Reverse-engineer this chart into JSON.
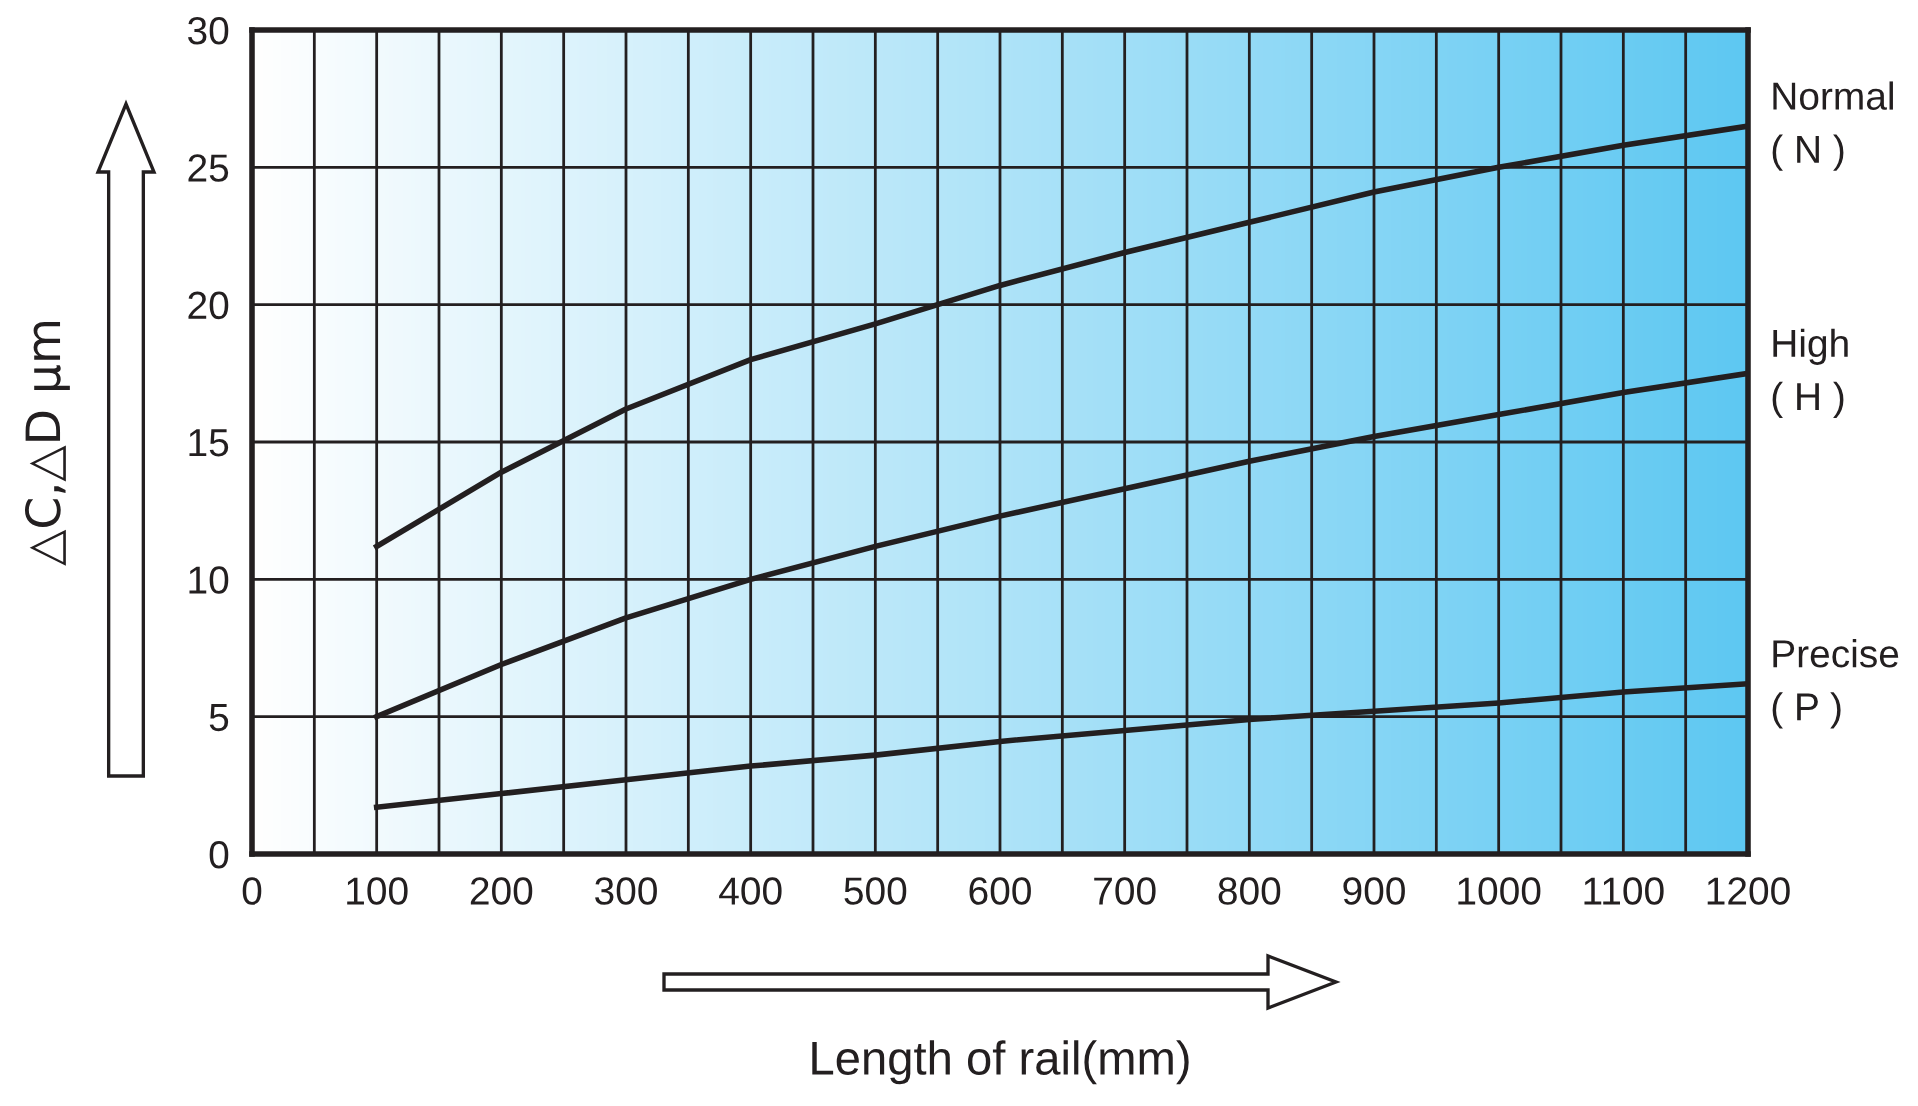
{
  "chart_data": {
    "type": "line",
    "xlabel": "Length of rail(mm)",
    "ylabel": "△C,△D μm",
    "x": [
      100,
      200,
      300,
      400,
      500,
      600,
      700,
      800,
      900,
      1000,
      1100,
      1200
    ],
    "series": [
      {
        "name": "Normal\n( N )",
        "color": "#231f20",
        "values": [
          11.2,
          13.9,
          16.2,
          18.0,
          19.3,
          20.7,
          21.9,
          23.0,
          24.1,
          25.0,
          25.8,
          26.5
        ]
      },
      {
        "name": "High\n( H )",
        "color": "#231f20",
        "values": [
          5.0,
          6.9,
          8.6,
          10.0,
          11.2,
          12.3,
          13.3,
          14.3,
          15.2,
          16.0,
          16.8,
          17.5
        ]
      },
      {
        "name": "Precise\n( P )",
        "color": "#231f20",
        "values": [
          1.7,
          2.2,
          2.7,
          3.2,
          3.6,
          4.1,
          4.5,
          4.9,
          5.2,
          5.5,
          5.9,
          6.2
        ]
      }
    ],
    "xlim": [
      0,
      1200
    ],
    "xticks": [
      0,
      100,
      200,
      300,
      400,
      500,
      600,
      700,
      800,
      900,
      1000,
      1100,
      1200
    ],
    "ylim": [
      0,
      30
    ],
    "yticks": [
      0,
      5,
      10,
      15,
      20,
      25,
      30
    ],
    "grid": true,
    "marker": "none",
    "line_style": "solid"
  }
}
